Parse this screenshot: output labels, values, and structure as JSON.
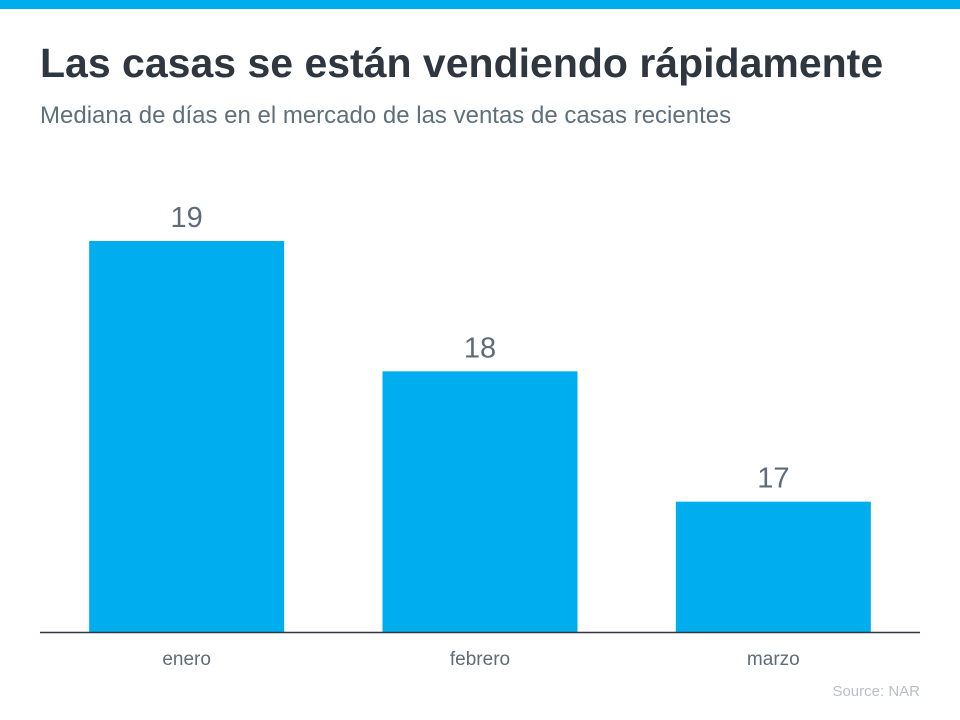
{
  "title": "Las casas se están vendiendo rápidamente",
  "subtitle": "Mediana de días en el mercado de las ventas de casas recientes",
  "source": "Source: NAR",
  "colors": {
    "accent": "#00aeef",
    "axis": "#2e3740",
    "label": "#5d6b7a"
  },
  "chart_data": {
    "type": "bar",
    "title": "Las casas se están vendiendo rápidamente",
    "subtitle": "Mediana de días en el mercado de las ventas de casas recientes",
    "categories": [
      "enero",
      "febrero",
      "marzo"
    ],
    "values": [
      19,
      18,
      17
    ],
    "data_labels": [
      "19",
      "18",
      "17"
    ],
    "xlabel": "",
    "ylabel": "",
    "ylim": [
      16,
      19
    ],
    "grid": false,
    "legend": "none"
  }
}
